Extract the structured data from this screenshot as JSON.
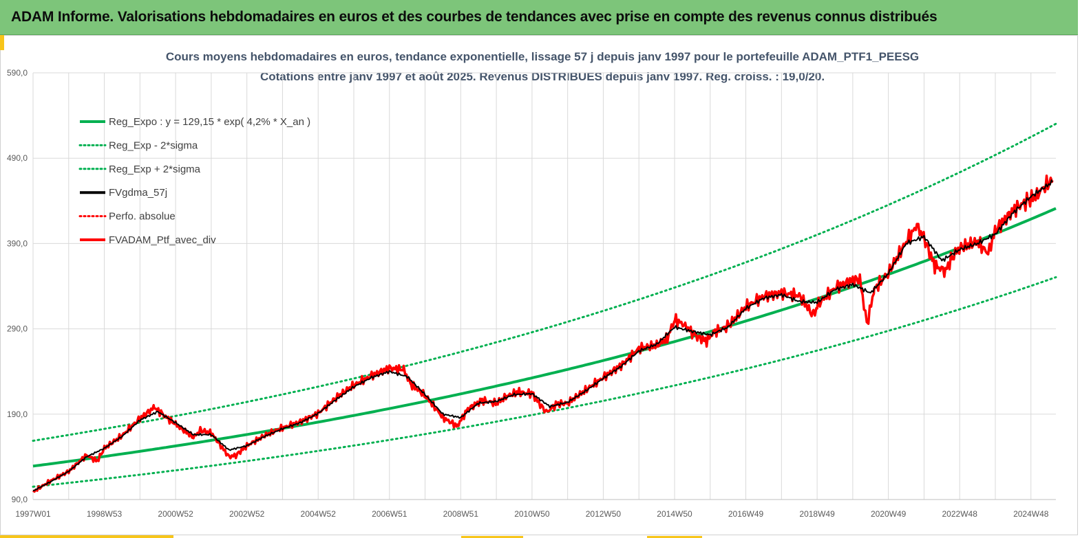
{
  "banner": {
    "title": "ADAM Informe. Valorisations hebdomadaires en euros et des courbes de tendances avec prise en compte des revenus connus distribués"
  },
  "colors": {
    "banner_bg": "#7dc57a",
    "accent": "#f7c51a",
    "regression": "#00b050",
    "fv": "#000000",
    "portfolio": "#ff0000",
    "grid": "#d9d9d9"
  },
  "chart_data": {
    "type": "line",
    "title_line1": "Cours moyens hebdomadaires  en euros, tendance exponentielle, lissage 57 j depuis janv 1997 pour le portefeuille ADAM_PTF1_PEESG",
    "title_line2": "Cotations  entre janv 1997 et août 2025. Revenus DISTRIBUES depuis janv 1997. Reg. croiss. : 19,0/20.",
    "xlabel": "",
    "ylabel": "",
    "ylim": [
      90,
      590
    ],
    "yticks": [
      "590,0",
      "490,0",
      "390,0",
      "290,0",
      "190,0",
      "90,0"
    ],
    "xticks": [
      "1997W01",
      "1998W53",
      "2000W52",
      "2002W52",
      "2004W52",
      "2006W51",
      "2008W51",
      "2010W50",
      "2012W50",
      "2014W50",
      "2016W49",
      "2018W49",
      "2020W49",
      "2022W48",
      "2024W48"
    ],
    "xtick_years": [
      1997.0,
      1999.0,
      2001.0,
      2003.0,
      2005.0,
      2007.0,
      2009.0,
      2011.0,
      2013.0,
      2015.0,
      2017.0,
      2019.0,
      2021.0,
      2023.0,
      2025.0
    ],
    "xlim": [
      1997.0,
      2025.7
    ],
    "grid": true,
    "legend_position": "top-left",
    "regression": {
      "a": 129.15,
      "rate": 0.042,
      "sigma_factor": 1.23
    },
    "series": [
      {
        "name": "Reg_Expo : y = 129,15 * exp( 4,2% *  X_an )",
        "style": "solid",
        "color": "#00b050",
        "kind": "reg"
      },
      {
        "name": "Reg_Exp - 2*sigma",
        "style": "dotted",
        "color": "#00b050",
        "kind": "reg_low"
      },
      {
        "name": "Reg_Exp + 2*sigma",
        "style": "dotted",
        "color": "#00b050",
        "kind": "reg_high"
      },
      {
        "name": "FVgdma_57j",
        "style": "solid",
        "color": "#000000",
        "kind": "fv"
      },
      {
        "name": "Perfo. absolue",
        "style": "dotted",
        "color": "#ff0000",
        "kind": "legend_only"
      },
      {
        "name": "FVADAM_Ptf_avec_div",
        "style": "solid",
        "color": "#ff0000",
        "kind": "price"
      }
    ],
    "price": {
      "x": [
        1997.0,
        1997.5,
        1998.0,
        1998.5,
        1998.8,
        1999.0,
        1999.5,
        2000.0,
        2000.4,
        2000.6,
        2001.0,
        2001.5,
        2001.7,
        2002.0,
        2002.5,
        2002.7,
        2003.0,
        2003.5,
        2004.0,
        2004.5,
        2005.0,
        2005.5,
        2006.0,
        2006.5,
        2007.0,
        2007.4,
        2007.6,
        2008.0,
        2008.5,
        2008.9,
        2009.2,
        2009.6,
        2010.0,
        2010.3,
        2010.6,
        2011.0,
        2011.4,
        2011.7,
        2012.0,
        2012.5,
        2013.0,
        2013.5,
        2014.0,
        2014.5,
        2014.8,
        2015.0,
        2015.3,
        2015.6,
        2015.9,
        2016.1,
        2016.5,
        2017.0,
        2017.5,
        2018.0,
        2018.5,
        2018.9,
        2019.0,
        2019.5,
        2020.0,
        2020.2,
        2020.4,
        2020.6,
        2021.0,
        2021.5,
        2021.8,
        2022.0,
        2022.3,
        2022.6,
        2022.8,
        2023.0,
        2023.5,
        2023.8,
        2024.0,
        2024.5,
        2024.9,
        2025.2,
        2025.4,
        2025.6
      ],
      "y": [
        99,
        112,
        123,
        142,
        135,
        150,
        165,
        185,
        198,
        191,
        178,
        163,
        171,
        168,
        140,
        142,
        153,
        165,
        174,
        181,
        191,
        209,
        224,
        235,
        244,
        242,
        225,
        212,
        186,
        176,
        196,
        206,
        203,
        211,
        216,
        214,
        192,
        202,
        203,
        218,
        233,
        247,
        267,
        271,
        279,
        301,
        294,
        281,
        276,
        286,
        293,
        316,
        328,
        332,
        329,
        305,
        318,
        338,
        347,
        348,
        295,
        336,
        356,
        392,
        411,
        396,
        364,
        358,
        375,
        385,
        392,
        378,
        405,
        429,
        440,
        448,
        458,
        464
      ]
    },
    "fv": {
      "x": [
        1997.0,
        1997.5,
        1998.0,
        1998.5,
        1999.0,
        1999.5,
        2000.0,
        2000.5,
        2001.0,
        2001.5,
        2002.0,
        2002.5,
        2003.0,
        2003.5,
        2004.0,
        2004.5,
        2005.0,
        2005.5,
        2006.0,
        2006.5,
        2007.0,
        2007.5,
        2008.0,
        2008.5,
        2009.0,
        2009.5,
        2010.0,
        2010.5,
        2011.0,
        2011.5,
        2012.0,
        2012.5,
        2013.0,
        2013.5,
        2014.0,
        2014.5,
        2015.0,
        2015.5,
        2016.0,
        2016.5,
        2017.0,
        2017.5,
        2018.0,
        2018.5,
        2019.0,
        2019.5,
        2020.0,
        2020.5,
        2021.0,
        2021.5,
        2022.0,
        2022.5,
        2023.0,
        2023.5,
        2024.0,
        2024.5,
        2025.0,
        2025.6
      ],
      "y": [
        100,
        111,
        123,
        140,
        150,
        164,
        183,
        193,
        180,
        166,
        166,
        148,
        153,
        164,
        173,
        180,
        191,
        207,
        222,
        233,
        240,
        234,
        213,
        190,
        186,
        203,
        205,
        213,
        214,
        199,
        204,
        217,
        232,
        246,
        264,
        272,
        292,
        287,
        283,
        292,
        314,
        326,
        330,
        322,
        321,
        336,
        342,
        332,
        355,
        390,
        398,
        370,
        383,
        390,
        401,
        426,
        445,
        462
      ]
    }
  },
  "legend": {
    "items": [
      "Reg_Expo : y = 129,15 * exp( 4,2% *  X_an )",
      "Reg_Exp - 2*sigma",
      "Reg_Exp + 2*sigma",
      "FVgdma_57j",
      "Perfo. absolue",
      "FVADAM_Ptf_avec_div"
    ]
  }
}
